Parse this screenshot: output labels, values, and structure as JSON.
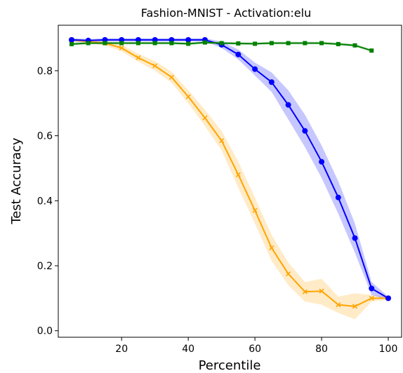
{
  "chart_data": {
    "type": "line",
    "title": "Fashion-MNIST - Activation:elu",
    "xlabel": "Percentile",
    "ylabel": "Test Accuracy",
    "xlim": [
      1,
      104
    ],
    "ylim": [
      -0.02,
      0.94
    ],
    "xticks": [
      20,
      40,
      60,
      80,
      100
    ],
    "yticks": [
      0.0,
      0.2,
      0.4,
      0.6,
      0.8
    ],
    "xtick_labels": [
      "20",
      "40",
      "60",
      "80",
      "100"
    ],
    "ytick_labels": [
      "0.0",
      "0.2",
      "0.4",
      "0.6",
      "0.8"
    ],
    "grid": false,
    "legend": "none",
    "series": [
      {
        "color": "#ffa500",
        "marker": "x",
        "x": [
          5,
          10,
          15,
          20,
          25,
          30,
          35,
          40,
          45,
          50,
          55,
          60,
          65,
          70,
          75,
          80,
          85,
          90,
          95,
          100
        ],
        "values": [
          0.895,
          0.89,
          0.885,
          0.87,
          0.84,
          0.815,
          0.78,
          0.72,
          0.655,
          0.585,
          0.48,
          0.37,
          0.255,
          0.175,
          0.12,
          0.122,
          0.08,
          0.075,
          0.1,
          0.1
        ],
        "lower": [
          0.89,
          0.885,
          0.878,
          0.86,
          0.828,
          0.8,
          0.763,
          0.7,
          0.63,
          0.555,
          0.44,
          0.33,
          0.215,
          0.14,
          0.09,
          0.08,
          0.055,
          0.035,
          0.09,
          0.095
        ],
        "upper": [
          0.9,
          0.895,
          0.892,
          0.88,
          0.852,
          0.83,
          0.797,
          0.74,
          0.68,
          0.615,
          0.52,
          0.41,
          0.295,
          0.21,
          0.15,
          0.16,
          0.105,
          0.115,
          0.11,
          0.105
        ]
      },
      {
        "color": "#0000ff",
        "marker": "o",
        "x": [
          5,
          10,
          15,
          20,
          25,
          30,
          35,
          40,
          45,
          50,
          55,
          60,
          65,
          70,
          75,
          80,
          85,
          90,
          95,
          100
        ],
        "values": [
          0.895,
          0.893,
          0.895,
          0.895,
          0.895,
          0.895,
          0.895,
          0.895,
          0.895,
          0.88,
          0.85,
          0.805,
          0.765,
          0.695,
          0.615,
          0.52,
          0.41,
          0.285,
          0.13,
          0.1
        ],
        "lower": [
          0.89,
          0.888,
          0.89,
          0.89,
          0.89,
          0.89,
          0.89,
          0.89,
          0.89,
          0.87,
          0.835,
          0.785,
          0.735,
          0.65,
          0.565,
          0.47,
          0.36,
          0.24,
          0.11,
          0.095
        ],
        "upper": [
          0.9,
          0.898,
          0.9,
          0.9,
          0.9,
          0.9,
          0.9,
          0.9,
          0.9,
          0.89,
          0.865,
          0.825,
          0.795,
          0.74,
          0.665,
          0.57,
          0.46,
          0.33,
          0.15,
          0.105
        ]
      },
      {
        "color": "#008000",
        "marker": "s",
        "x": [
          5,
          10,
          15,
          20,
          25,
          30,
          35,
          40,
          45,
          50,
          55,
          60,
          65,
          70,
          75,
          80,
          85,
          90,
          95
        ],
        "values": [
          0.882,
          0.885,
          0.885,
          0.885,
          0.885,
          0.885,
          0.885,
          0.883,
          0.887,
          0.885,
          0.884,
          0.883,
          0.885,
          0.885,
          0.885,
          0.885,
          0.882,
          0.878,
          0.862
        ],
        "lower": [
          0.878,
          0.881,
          0.881,
          0.881,
          0.881,
          0.881,
          0.881,
          0.879,
          0.883,
          0.881,
          0.88,
          0.879,
          0.881,
          0.881,
          0.881,
          0.881,
          0.878,
          0.874,
          0.858
        ],
        "upper": [
          0.886,
          0.889,
          0.889,
          0.889,
          0.889,
          0.889,
          0.889,
          0.887,
          0.891,
          0.889,
          0.888,
          0.887,
          0.889,
          0.889,
          0.889,
          0.889,
          0.886,
          0.882,
          0.866
        ]
      }
    ]
  }
}
